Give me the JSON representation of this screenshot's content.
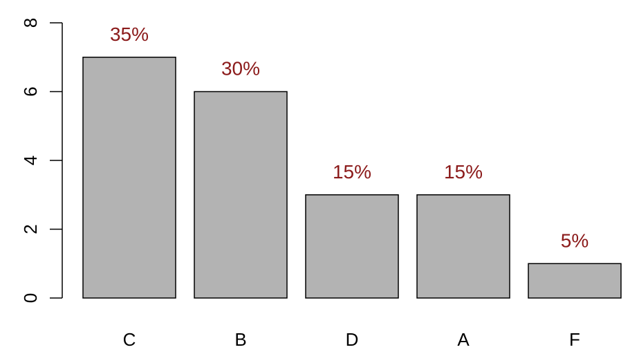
{
  "chart_data": {
    "type": "bar",
    "categories": [
      "C",
      "B",
      "D",
      "A",
      "F"
    ],
    "values": [
      7,
      6,
      3,
      3,
      1
    ],
    "data_labels": [
      "35%",
      "30%",
      "15%",
      "15%",
      "5%"
    ],
    "title": "",
    "xlabel": "",
    "ylabel": "",
    "ylim": [
      0,
      8
    ],
    "yticks": [
      0,
      2,
      4,
      6,
      8
    ],
    "ytick_labels": [
      "0",
      "2",
      "4",
      "6",
      "8"
    ],
    "grid": false,
    "legend": "none",
    "colors": {
      "bar_fill": "#b3b3b3",
      "bar_stroke": "#000000",
      "data_label": "#8b1a1a",
      "axis": "#000000"
    }
  }
}
